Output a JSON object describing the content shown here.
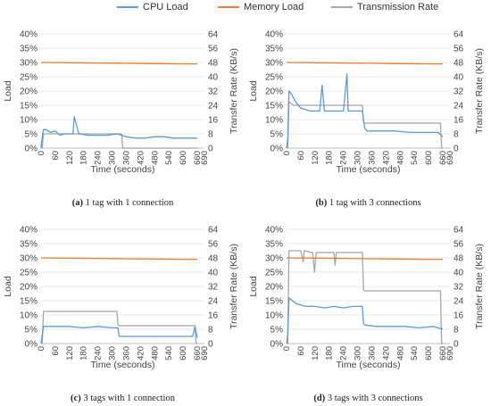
{
  "legend": [
    {
      "name": "CPU Load",
      "color": "#5b9bd5"
    },
    {
      "name": "Memory Load",
      "color": "#ed7d31"
    },
    {
      "name": "Transmission Rate",
      "color": "#a5a5a5"
    }
  ],
  "chart_data": [
    {
      "type": "line",
      "caption_tag": "(a)",
      "caption_text": " 1 tag with 1 connection",
      "xlabel": "Time (seconds)",
      "ylabel": "Load",
      "y2label": "Transfer Rate (KB/s)",
      "xlim": [
        0,
        690
      ],
      "xticks": [
        0,
        60,
        120,
        180,
        240,
        300,
        360,
        420,
        480,
        540,
        600,
        660,
        690
      ],
      "ylim": [
        0,
        40
      ],
      "yticks": [
        "0%",
        "5%",
        "10%",
        "15%",
        "20%",
        "25%",
        "30%",
        "35%",
        "40%"
      ],
      "y2lim": [
        0,
        64
      ],
      "y2ticks": [
        0,
        8,
        16,
        24,
        32,
        40,
        48,
        56,
        64
      ],
      "series": [
        {
          "name": "CPU Load",
          "axis": "left",
          "x": [
            0,
            5,
            10,
            20,
            40,
            60,
            80,
            100,
            120,
            135,
            140,
            160,
            200,
            240,
            280,
            320,
            360,
            400,
            440,
            480,
            520,
            560,
            600,
            640,
            660
          ],
          "y": [
            0,
            4,
            6.5,
            6.5,
            5.5,
            6,
            4.5,
            5,
            5,
            5,
            11,
            5,
            4.5,
            4.5,
            4.5,
            5,
            4,
            3.5,
            3.5,
            4,
            4,
            3.5,
            3.5,
            3.5,
            3.5
          ]
        },
        {
          "name": "Memory Load",
          "axis": "left",
          "x": [
            0,
            120,
            240,
            360,
            480,
            600,
            660
          ],
          "y": [
            30,
            29.9,
            29.8,
            29.7,
            29.6,
            29.5,
            29.5
          ]
        },
        {
          "name": "Transmission Rate",
          "axis": "right",
          "x": [
            0,
            5,
            10,
            340,
            345,
            660
          ],
          "y": [
            0,
            0,
            8,
            8,
            0,
            0
          ]
        }
      ]
    },
    {
      "type": "line",
      "caption_tag": "(b)",
      "caption_text": " 1 tag with 3 connections",
      "xlabel": "Time (seconds)",
      "ylabel": "Load",
      "y2label": "Transfer Rate (KB/s)",
      "xlim": [
        0,
        690
      ],
      "xticks": [
        0,
        60,
        120,
        180,
        240,
        300,
        360,
        420,
        480,
        540,
        600,
        660,
        690
      ],
      "ylim": [
        0,
        40
      ],
      "yticks": [
        "0%",
        "5%",
        "10%",
        "15%",
        "20%",
        "25%",
        "30%",
        "35%",
        "40%"
      ],
      "y2lim": [
        0,
        64
      ],
      "y2ticks": [
        0,
        8,
        16,
        24,
        32,
        40,
        48,
        56,
        64
      ],
      "series": [
        {
          "name": "CPU Load",
          "axis": "left",
          "x": [
            0,
            5,
            10,
            20,
            40,
            60,
            100,
            140,
            150,
            160,
            200,
            240,
            255,
            260,
            280,
            320,
            330,
            340,
            400,
            460,
            520,
            580,
            640,
            660
          ],
          "y": [
            0,
            3,
            20,
            19,
            16,
            14,
            13,
            13,
            22,
            13,
            13,
            13,
            26,
            13,
            13,
            13,
            7,
            6,
            6,
            6,
            5.5,
            5.5,
            5.5,
            4
          ]
        },
        {
          "name": "Memory Load",
          "axis": "left",
          "x": [
            0,
            120,
            240,
            360,
            480,
            600,
            660
          ],
          "y": [
            30,
            29.9,
            29.8,
            29.7,
            29.6,
            29.5,
            29.5
          ]
        },
        {
          "name": "Transmission Rate",
          "axis": "right",
          "x": [
            0,
            5,
            10,
            30,
            320,
            325,
            330,
            650,
            655,
            660
          ],
          "y": [
            0,
            0,
            26,
            24,
            24,
            14.5,
            14,
            14,
            0,
            0
          ]
        }
      ]
    },
    {
      "type": "line",
      "caption_tag": "(c)",
      "caption_text": " 3 tags with 1 connection",
      "xlabel": "Time (seconds)",
      "ylabel": "Load",
      "y2label": "Transfer Rate (KB/s)",
      "xlim": [
        0,
        690
      ],
      "xticks": [
        0,
        60,
        120,
        180,
        240,
        300,
        360,
        420,
        480,
        540,
        600,
        660,
        690
      ],
      "ylim": [
        0,
        40
      ],
      "yticks": [
        "0%",
        "5%",
        "10%",
        "15%",
        "20%",
        "25%",
        "30%",
        "35%",
        "40%"
      ],
      "y2lim": [
        0,
        64
      ],
      "y2ticks": [
        0,
        8,
        16,
        24,
        32,
        40,
        48,
        56,
        64
      ],
      "series": [
        {
          "name": "CPU Load",
          "axis": "left",
          "x": [
            0,
            5,
            10,
            60,
            120,
            180,
            240,
            300,
            325,
            330,
            360,
            420,
            480,
            540,
            600,
            640,
            650,
            660
          ],
          "y": [
            0,
            3,
            6,
            6,
            6,
            5.5,
            6,
            5.5,
            5.5,
            2.5,
            2.5,
            2.5,
            2.5,
            2.5,
            2.5,
            2.5,
            6,
            2
          ]
        },
        {
          "name": "Memory Load",
          "axis": "left",
          "x": [
            0,
            120,
            240,
            360,
            480,
            600,
            660
          ],
          "y": [
            30,
            29.9,
            29.8,
            29.7,
            29.6,
            29.5,
            29.5
          ]
        },
        {
          "name": "Transmission Rate",
          "axis": "right",
          "x": [
            0,
            5,
            10,
            320,
            325,
            330,
            650,
            655,
            660
          ],
          "y": [
            0,
            0,
            18,
            18,
            10.5,
            10,
            10,
            0,
            0
          ]
        }
      ]
    },
    {
      "type": "line",
      "caption_tag": "(d)",
      "caption_text": " 3 tags with 3 connections",
      "xlabel": "Time (seconds)",
      "ylabel": "Load",
      "y2label": "Transfer Rate (KB/s)",
      "xlim": [
        0,
        690
      ],
      "xticks": [
        0,
        60,
        120,
        180,
        240,
        300,
        360,
        420,
        480,
        540,
        600,
        660,
        690
      ],
      "ylim": [
        0,
        40
      ],
      "yticks": [
        "0%",
        "5%",
        "10%",
        "15%",
        "20%",
        "25%",
        "30%",
        "35%",
        "40%"
      ],
      "y2lim": [
        0,
        64
      ],
      "y2ticks": [
        0,
        8,
        16,
        24,
        32,
        40,
        48,
        56,
        64
      ],
      "series": [
        {
          "name": "CPU Load",
          "axis": "left",
          "x": [
            0,
            5,
            10,
            40,
            80,
            120,
            160,
            200,
            240,
            280,
            320,
            325,
            330,
            380,
            440,
            500,
            560,
            620,
            660
          ],
          "y": [
            0,
            3,
            16,
            14,
            13,
            13,
            12.5,
            13,
            12.5,
            13,
            13,
            7,
            6.5,
            6,
            6,
            6,
            5.5,
            6,
            5
          ]
        },
        {
          "name": "Memory Load",
          "axis": "left",
          "x": [
            0,
            120,
            240,
            360,
            480,
            600,
            660
          ],
          "y": [
            30,
            29.9,
            29.8,
            29.7,
            29.6,
            29.5,
            29.5
          ]
        },
        {
          "name": "Transmission Rate",
          "axis": "right",
          "x": [
            0,
            5,
            10,
            60,
            70,
            75,
            110,
            118,
            125,
            200,
            205,
            210,
            320,
            325,
            330,
            650,
            655,
            660
          ],
          "y": [
            0,
            0,
            52,
            52,
            46,
            52,
            51,
            40,
            51,
            51,
            44,
            51,
            51,
            30,
            29.5,
            29.5,
            0,
            0
          ]
        }
      ]
    }
  ]
}
